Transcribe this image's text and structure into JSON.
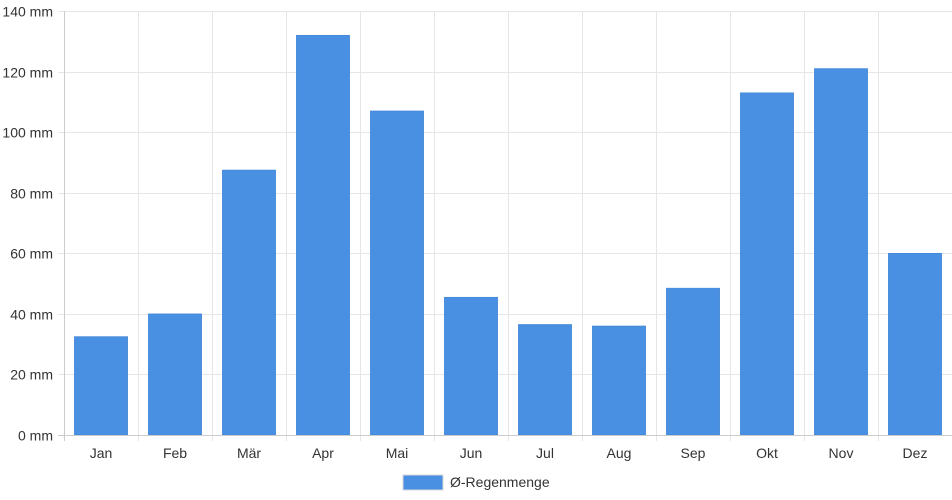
{
  "chart_data": {
    "type": "bar",
    "categories": [
      "Jan",
      "Feb",
      "Mär",
      "Apr",
      "Mai",
      "Jun",
      "Jul",
      "Aug",
      "Sep",
      "Okt",
      "Nov",
      "Dez"
    ],
    "series": [
      {
        "name": "Ø-Regenmenge",
        "values": [
          32.5,
          40,
          87.5,
          132,
          107,
          45.5,
          36.5,
          36,
          48.5,
          113,
          121,
          60
        ],
        "color": "#4a90e2"
      }
    ],
    "ylim": [
      0,
      140
    ],
    "yticks": [
      0,
      20,
      40,
      60,
      80,
      100,
      120,
      140
    ],
    "ytick_labels": [
      "0 mm",
      "20 mm",
      "40 mm",
      "60 mm",
      "80 mm",
      "100 mm",
      "120 mm",
      "140 mm"
    ],
    "grid": true,
    "legend_position": "bottom"
  }
}
